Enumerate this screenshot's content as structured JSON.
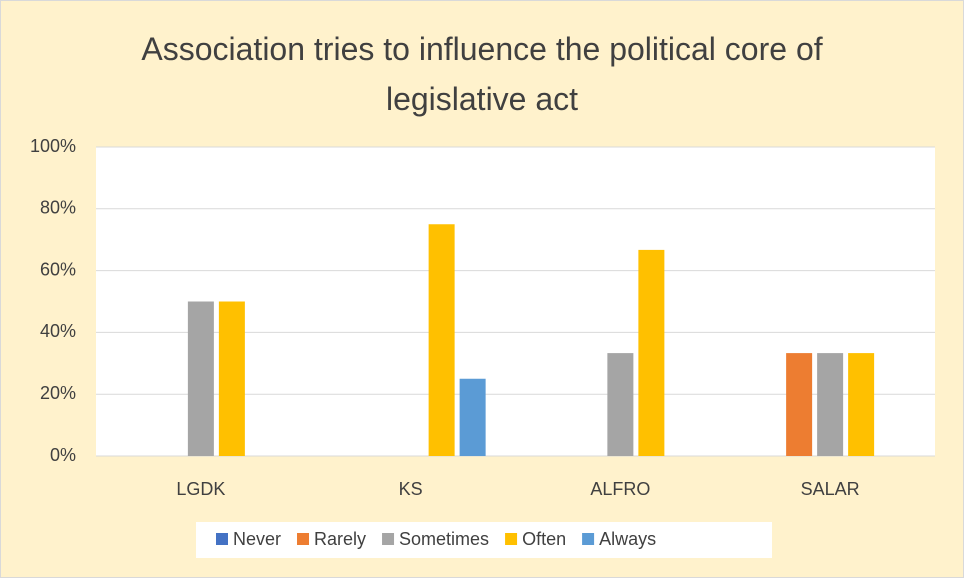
{
  "chart_data": {
    "type": "bar",
    "title": "Association tries to influence the political core of legislative act",
    "categories": [
      "LGDK",
      "KS",
      "ALFRO",
      "SALAR"
    ],
    "series": [
      {
        "name": "Never",
        "color": "#4472c4",
        "values": [
          0,
          0,
          0,
          0
        ]
      },
      {
        "name": "Rarely",
        "color": "#ed7d31",
        "values": [
          0,
          0,
          0,
          33.3
        ]
      },
      {
        "name": "Sometimes",
        "color": "#a5a5a5",
        "values": [
          50,
          0,
          33.3,
          33.3
        ]
      },
      {
        "name": "Often",
        "color": "#ffc000",
        "values": [
          50,
          75,
          66.7,
          33.3
        ]
      },
      {
        "name": "Always",
        "color": "#5b9bd5",
        "values": [
          0,
          25,
          0,
          0
        ]
      }
    ],
    "ylim": [
      0,
      100
    ],
    "yticks": [
      {
        "value": 0,
        "label": "0%"
      },
      {
        "value": 20,
        "label": "20%"
      },
      {
        "value": 40,
        "label": "40%"
      },
      {
        "value": 60,
        "label": "60%"
      },
      {
        "value": 80,
        "label": "80%"
      },
      {
        "value": 100,
        "label": "100%"
      }
    ],
    "grid": true,
    "legend": "bottom"
  }
}
